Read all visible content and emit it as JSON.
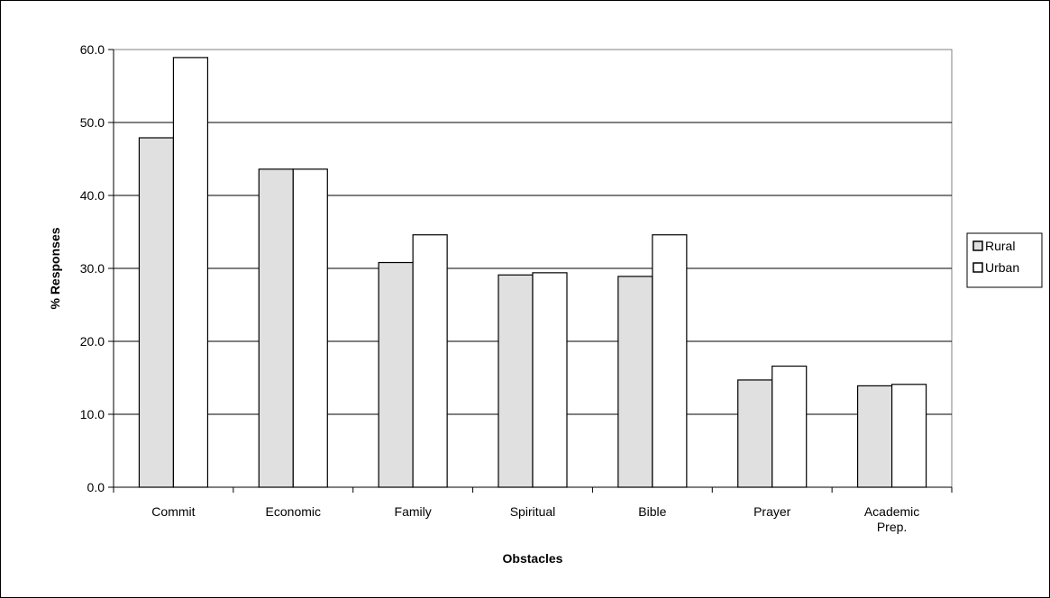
{
  "chart_data": {
    "type": "bar",
    "title": "",
    "xlabel": "Obstacles",
    "ylabel": "% Responses",
    "categories": [
      [
        "Commit"
      ],
      [
        "Economic"
      ],
      [
        "Family"
      ],
      [
        "Spiritual"
      ],
      [
        "Bible"
      ],
      [
        "Prayer"
      ],
      [
        "Academic",
        "Prep."
      ]
    ],
    "series": [
      {
        "name": "Rural",
        "color": "#e0e0e0",
        "values": [
          47.9,
          43.6,
          30.8,
          29.1,
          28.9,
          14.7,
          13.9
        ]
      },
      {
        "name": "Urban",
        "color": "#ffffff",
        "values": [
          58.9,
          43.6,
          34.6,
          29.4,
          34.6,
          16.6,
          14.1
        ]
      }
    ],
    "ylim": [
      0,
      60
    ],
    "yticks": [
      "0.0",
      "10.0",
      "20.0",
      "30.0",
      "40.0",
      "50.0",
      "60.0"
    ],
    "grid": true,
    "legend": "right"
  }
}
